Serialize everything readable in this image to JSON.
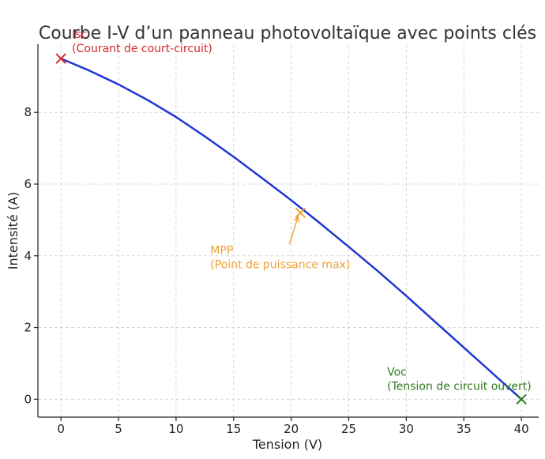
{
  "chart_data": {
    "type": "line",
    "title": "Courbe I-V d’un panneau photovoltaïque avec points clés",
    "xlabel": "Tension (V)",
    "ylabel": "Intensité (A)",
    "xlim": [
      -2,
      41.5
    ],
    "ylim": [
      -0.5,
      9.9
    ],
    "xticks": [
      0,
      5,
      10,
      15,
      20,
      25,
      30,
      35,
      40
    ],
    "yticks": [
      0,
      2,
      4,
      6,
      8
    ],
    "grid": true,
    "series": [
      {
        "color": "#1f35d6",
        "x": [
          0,
          2.5,
          5,
          7.5,
          10,
          12.5,
          15,
          17.5,
          20,
          22.5,
          25,
          27.5,
          30,
          32.5,
          35,
          37.5,
          40
        ],
        "y": [
          9.5,
          9.16,
          8.78,
          8.35,
          7.87,
          7.33,
          6.76,
          6.16,
          5.55,
          4.91,
          4.25,
          3.58,
          2.88,
          2.16,
          1.44,
          0.72,
          0.0
        ]
      }
    ],
    "key_points": [
      {
        "id": "isc",
        "x": 0,
        "y": 9.5,
        "color": "#d62728",
        "label_lines": [
          "Isc",
          "(Courant de court-circuit)"
        ]
      },
      {
        "id": "mpp",
        "x": 20.8,
        "y": 5.2,
        "color": "#f0a030",
        "label_lines": [
          "MPP",
          "(Point de puissance max)"
        ],
        "arrow": true
      },
      {
        "id": "voc",
        "x": 40,
        "y": 0,
        "color": "#2b7a1e",
        "label_lines": [
          "Voc",
          "(Tension de circuit ouvert)"
        ]
      }
    ]
  }
}
